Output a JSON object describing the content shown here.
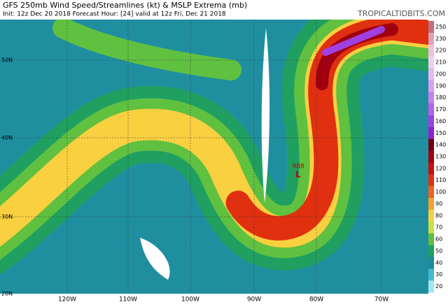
{
  "header": {
    "title": "GFS 250mb Wind Speed/Streamlines (kt) & MSLP Extrema (mb)",
    "subtitle": "Init: 12z Dec 20 2018   Forecast Hour: [24]   valid at 12z Fri, Dec 21 2018",
    "site": "TROPICALTIDBITS.COM"
  },
  "map": {
    "lat_labels": [
      "50N",
      "40N",
      "30N",
      "20N"
    ],
    "lon_labels": [
      "120W",
      "110W",
      "100W",
      "90W",
      "80W",
      "70W"
    ],
    "pressure_low": {
      "value": "988",
      "symbol": "L"
    }
  },
  "legend": {
    "labels": [
      250,
      230,
      220,
      210,
      200,
      190,
      180,
      170,
      160,
      150,
      140,
      130,
      120,
      110,
      100,
      90,
      80,
      70,
      60,
      50,
      40,
      30,
      20
    ],
    "colors": [
      "#c07080",
      "#e0a0c0",
      "#f0c0e0",
      "#f0d0f0",
      "#e8b8f0",
      "#d8a0f0",
      "#c880f0",
      "#b860e8",
      "#a040e0",
      "#9020d0",
      "#700010",
      "#a00010",
      "#c81010",
      "#e03010",
      "#f06020",
      "#f8a030",
      "#f8d040",
      "#c8e040",
      "#60c040",
      "#20a060",
      "#208898",
      "#40b8d0",
      "#a0e8f0"
    ]
  }
}
